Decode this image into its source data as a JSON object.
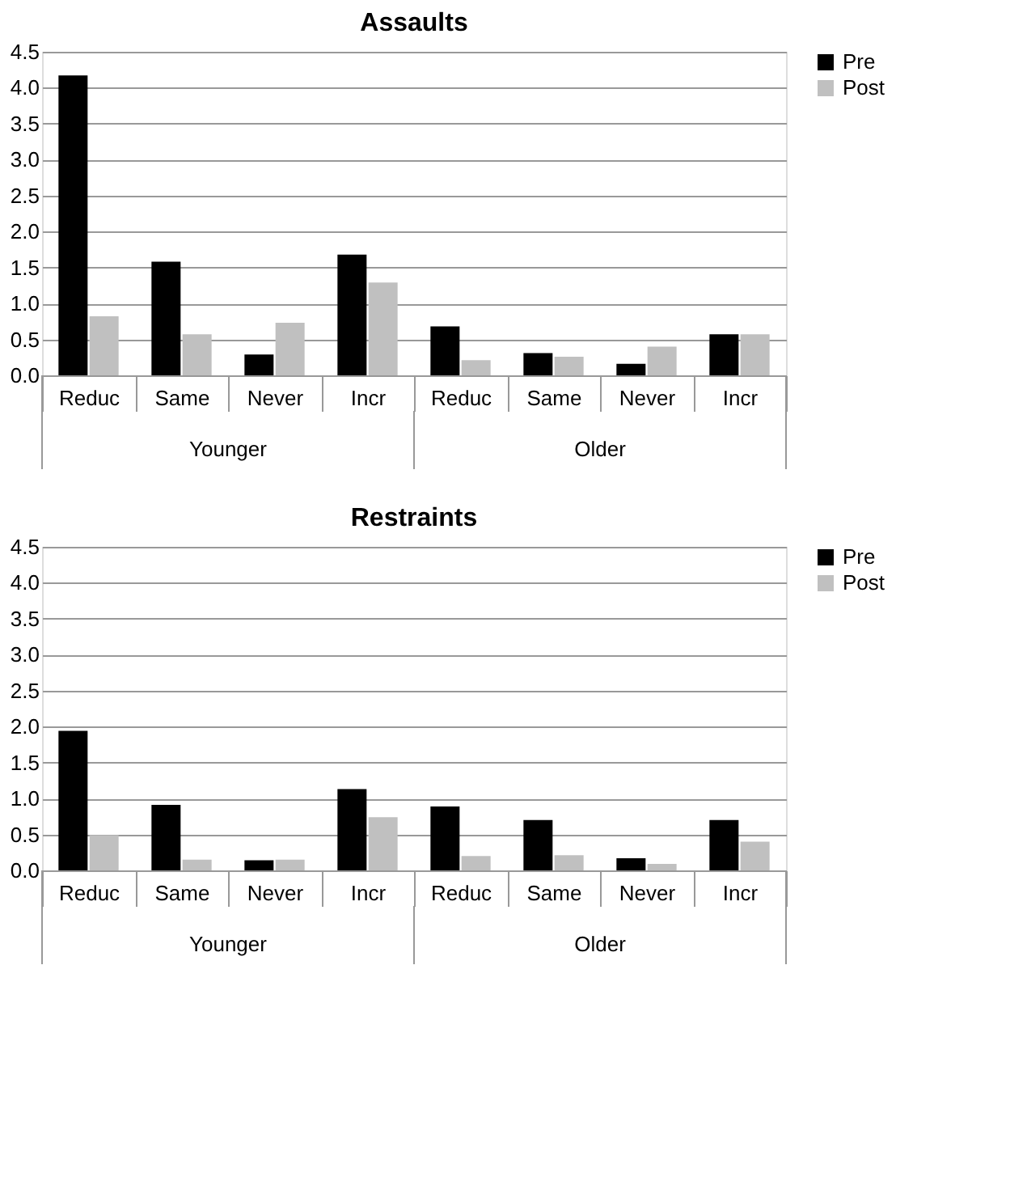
{
  "chart_data": [
    {
      "type": "bar",
      "title": "Assaults",
      "categories": [
        "Reduc",
        "Same",
        "Never",
        "Incr",
        "Reduc",
        "Same",
        "Never",
        "Incr"
      ],
      "series": [
        {
          "name": "Pre",
          "color": "#000000",
          "values": [
            4.17,
            1.58,
            0.29,
            1.68,
            0.68,
            0.31,
            0.16,
            0.57
          ]
        },
        {
          "name": "Post",
          "color": "#c0c0c0",
          "values": [
            0.82,
            0.57,
            0.73,
            1.29,
            0.21,
            0.26,
            0.4,
            0.57
          ]
        }
      ],
      "annotations": [
        "Younger",
        "Older"
      ],
      "ylim": [
        0,
        4.5
      ],
      "yticks": [
        {
          "value": 0,
          "label": "0.0"
        },
        {
          "value": 0.5,
          "label": "0.5"
        },
        {
          "value": 1,
          "label": "1.0"
        },
        {
          "value": 1.5,
          "label": "1.5"
        },
        {
          "value": 2,
          "label": "2.0"
        },
        {
          "value": 2.5,
          "label": "2.5"
        },
        {
          "value": 3,
          "label": "3.0"
        },
        {
          "value": 3.5,
          "label": "3.5"
        },
        {
          "value": 4,
          "label": "4.0"
        },
        {
          "value": 4.5,
          "label": "4.5"
        }
      ],
      "grid": "y",
      "legend": "right"
    },
    {
      "type": "bar",
      "title": "Restraints",
      "categories": [
        "Reduc",
        "Same",
        "Never",
        "Incr",
        "Reduc",
        "Same",
        "Never",
        "Incr"
      ],
      "series": [
        {
          "name": "Pre",
          "color": "#000000",
          "values": [
            1.94,
            0.91,
            0.14,
            1.13,
            0.89,
            0.7,
            0.17,
            0.7
          ]
        },
        {
          "name": "Post",
          "color": "#c0c0c0",
          "values": [
            0.49,
            0.15,
            0.15,
            0.74,
            0.2,
            0.21,
            0.09,
            0.4
          ]
        }
      ],
      "annotations": [
        "Younger",
        "Older"
      ],
      "ylim": [
        0,
        4.5
      ],
      "yticks": [
        {
          "value": 0,
          "label": "0.0"
        },
        {
          "value": 0.5,
          "label": "0.5"
        },
        {
          "value": 1,
          "label": "1.0"
        },
        {
          "value": 1.5,
          "label": "1.5"
        },
        {
          "value": 2,
          "label": "2.0"
        },
        {
          "value": 2.5,
          "label": "2.5"
        },
        {
          "value": 3,
          "label": "3.0"
        },
        {
          "value": 3.5,
          "label": "3.5"
        },
        {
          "value": 4,
          "label": "4.0"
        },
        {
          "value": 4.5,
          "label": "4.5"
        }
      ],
      "grid": "y",
      "legend": "right"
    }
  ]
}
